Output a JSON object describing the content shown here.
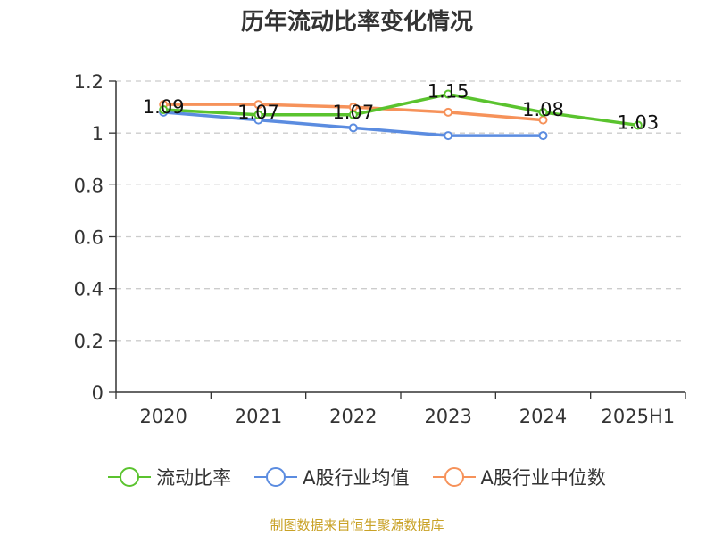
{
  "chart_data": {
    "type": "line",
    "title": "历年流动比率变化情况",
    "categories": [
      "2020",
      "2021",
      "2022",
      "2023",
      "2024",
      "2025H1"
    ],
    "ylim": [
      0,
      1.2
    ],
    "yticks": [
      "0",
      "0.2",
      "0.4",
      "0.6",
      "0.8",
      "1",
      "1.2"
    ],
    "grid": true,
    "legend_position": "bottom",
    "series": [
      {
        "name": "流动比率",
        "color": "#5ac32e",
        "values": [
          1.09,
          1.07,
          1.07,
          1.15,
          1.08,
          1.03
        ],
        "labels": [
          "1.09",
          "1.07",
          "1.07",
          "1.15",
          "1.08",
          "1.03"
        ]
      },
      {
        "name": "A股行业均值",
        "color": "#5b8ce0",
        "values": [
          1.08,
          1.05,
          1.02,
          0.99,
          0.99,
          null
        ]
      },
      {
        "name": "A股行业中位数",
        "color": "#f6925a",
        "values": [
          1.11,
          1.11,
          1.1,
          1.08,
          1.05,
          null
        ]
      }
    ]
  },
  "source_text": "制图数据来自恒生聚源数据库"
}
